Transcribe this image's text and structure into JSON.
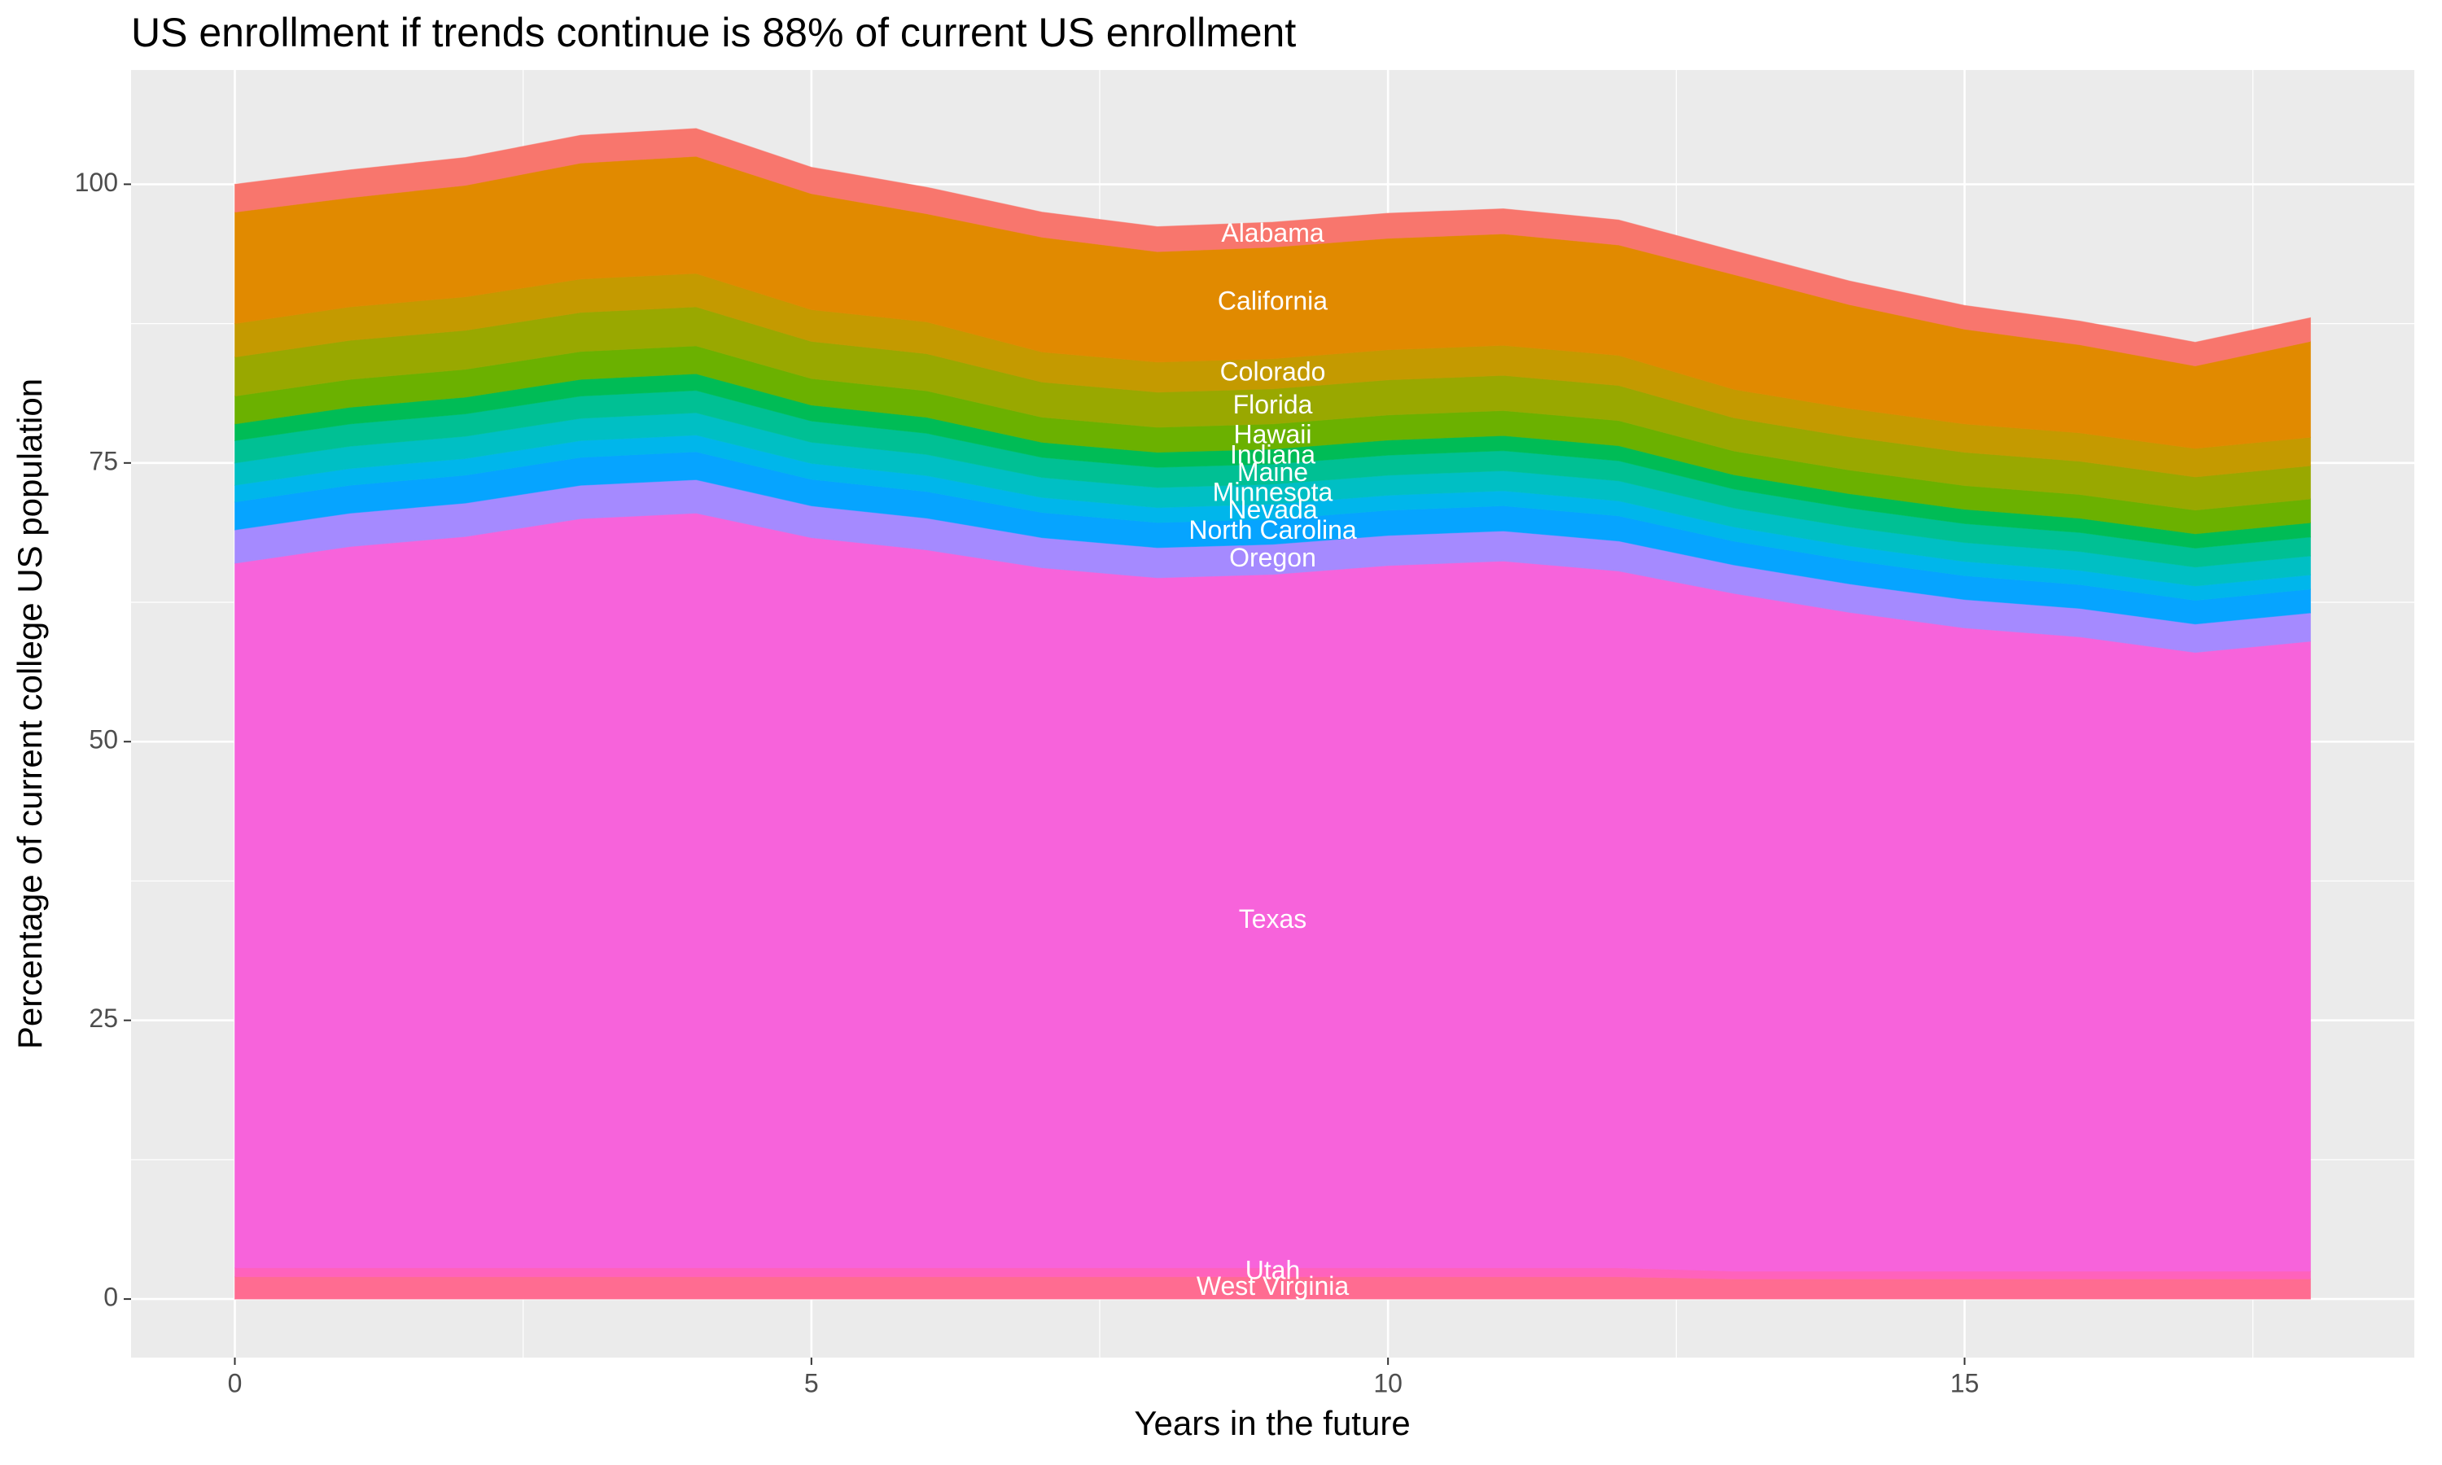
{
  "chart_data": {
    "type": "stacked_area",
    "title": "US enrollment if trends continue is 88% of current US enrollment",
    "x_label": "Years in the future",
    "y_label": "Percentage of current college US population",
    "x": [
      0,
      1,
      2,
      3,
      4,
      5,
      6,
      7,
      8,
      9,
      10,
      11,
      12,
      13,
      14,
      15,
      16,
      17,
      18
    ],
    "xlim": [
      -0.9,
      18.9
    ],
    "ylim": [
      -5.25,
      110.25
    ],
    "xticks": [
      0,
      5,
      10,
      15
    ],
    "yticks": [
      0,
      25,
      50,
      75,
      100
    ],
    "minor_xticks": [
      2.5,
      7.5,
      12.5,
      17.5
    ],
    "minor_yticks": [
      12.5,
      37.5,
      62.5,
      87.5
    ],
    "grid": true,
    "label_x": 9,
    "series": [
      {
        "name": "West Virginia",
        "color": "#FF6C91",
        "values": [
          2,
          2,
          2,
          2,
          2,
          2,
          2,
          2,
          2,
          2,
          2,
          2,
          2,
          1.8,
          1.8,
          1.8,
          1.8,
          1.8,
          1.8
        ]
      },
      {
        "name": "Utah",
        "color": "#FF62BC",
        "values": [
          0.8,
          0.8,
          0.8,
          0.8,
          0.8,
          0.8,
          0.8,
          0.8,
          0.8,
          0.8,
          0.8,
          0.8,
          0.8,
          0.7,
          0.7,
          0.7,
          0.7,
          0.7,
          0.7
        ]
      },
      {
        "name": "Texas",
        "color": "#F763DB",
        "values": [
          63.2,
          64.7,
          65.6,
          67.2,
          67.7,
          65.5,
          64.4,
          62.8,
          61.9,
          62.2,
          63,
          63.4,
          62.5,
          60.8,
          59.1,
          57.7,
          56.9,
          55.5,
          56.5
        ]
      },
      {
        "name": "Oregon",
        "color": "#A58AFF",
        "values": [
          3,
          3,
          3,
          3,
          3,
          2.85,
          2.85,
          2.7,
          2.7,
          2.7,
          2.7,
          2.7,
          2.7,
          2.55,
          2.55,
          2.55,
          2.55,
          2.55,
          2.55
        ]
      },
      {
        "name": "North Carolina",
        "color": "#06A4FF",
        "values": [
          2.5,
          2.5,
          2.5,
          2.5,
          2.5,
          2.38,
          2.38,
          2.25,
          2.25,
          2.25,
          2.25,
          2.25,
          2.25,
          2.13,
          2.13,
          2.13,
          2.13,
          2.13,
          2.13
        ]
      },
      {
        "name": "Nevada",
        "color": "#00B6EB",
        "values": [
          1.5,
          1.5,
          1.5,
          1.5,
          1.5,
          1.43,
          1.43,
          1.35,
          1.35,
          1.35,
          1.35,
          1.35,
          1.35,
          1.28,
          1.28,
          1.28,
          1.28,
          1.28,
          1.28
        ]
      },
      {
        "name": "Minnesota",
        "color": "#00BFC4",
        "values": [
          2,
          2,
          2,
          2,
          2,
          1.9,
          1.9,
          1.8,
          1.8,
          1.8,
          1.8,
          1.8,
          1.8,
          1.7,
          1.7,
          1.7,
          1.7,
          1.7,
          1.7
        ]
      },
      {
        "name": "Maine",
        "color": "#00C094",
        "values": [
          2,
          2,
          2,
          2,
          2,
          1.9,
          1.9,
          1.8,
          1.8,
          1.8,
          1.8,
          1.8,
          1.8,
          1.7,
          1.7,
          1.7,
          1.7,
          1.7,
          1.7
        ]
      },
      {
        "name": "Indiana",
        "color": "#00BC56",
        "values": [
          1.5,
          1.5,
          1.5,
          1.5,
          1.5,
          1.43,
          1.43,
          1.35,
          1.35,
          1.35,
          1.35,
          1.35,
          1.35,
          1.28,
          1.28,
          1.28,
          1.28,
          1.28,
          1.28
        ]
      },
      {
        "name": "Hawaii",
        "color": "#6BB100",
        "values": [
          2.5,
          2.5,
          2.5,
          2.5,
          2.5,
          2.38,
          2.38,
          2.25,
          2.25,
          2.25,
          2.25,
          2.25,
          2.25,
          2.13,
          2.13,
          2.13,
          2.13,
          2.13,
          2.13
        ]
      },
      {
        "name": "Florida",
        "color": "#99A800",
        "values": [
          3.5,
          3.5,
          3.5,
          3.5,
          3.5,
          3.33,
          3.33,
          3.15,
          3.15,
          3.15,
          3.15,
          3.15,
          3.15,
          2.98,
          2.98,
          2.98,
          2.98,
          2.98,
          2.98
        ]
      },
      {
        "name": "Colorado",
        "color": "#C49A00",
        "values": [
          3,
          3,
          3,
          3,
          3,
          2.85,
          2.85,
          2.7,
          2.7,
          2.7,
          2.7,
          2.7,
          2.7,
          2.55,
          2.55,
          2.55,
          2.55,
          2.55,
          2.55
        ]
      },
      {
        "name": "California",
        "color": "#E18A00",
        "values": [
          10,
          9.8,
          10,
          10.4,
          10.5,
          10.4,
          9.7,
          10.3,
          9.9,
          10,
          10,
          10,
          9.9,
          10.3,
          9.3,
          8.5,
          7.9,
          7.4,
          8.6
        ]
      },
      {
        "name": "Alabama",
        "color": "#F8766D",
        "values": [
          2.5,
          2.5,
          2.5,
          2.5,
          2.5,
          2.38,
          2.38,
          2.25,
          2.25,
          2.25,
          2.25,
          2.25,
          2.25,
          2.13,
          2.13,
          2.13,
          2.13,
          2.13,
          2.13
        ]
      }
    ]
  }
}
